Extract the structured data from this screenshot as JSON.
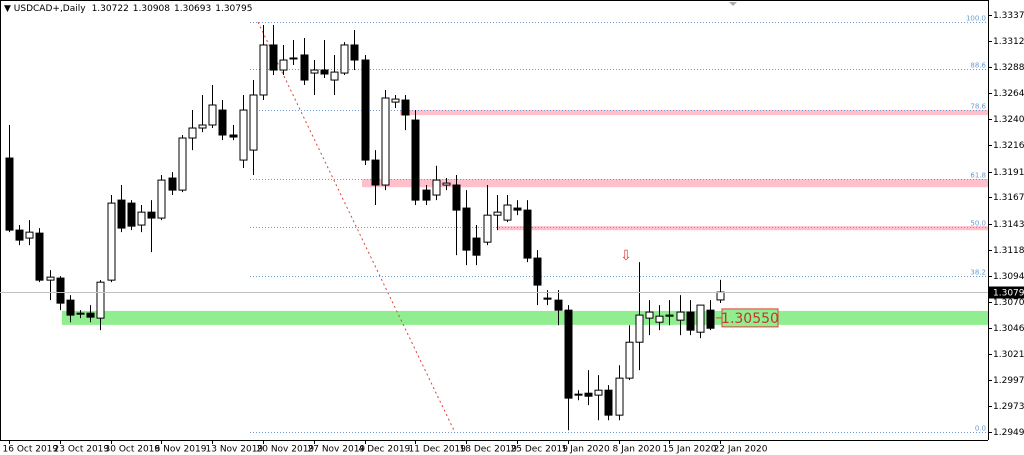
{
  "chart_data": {
    "type": "candlestick",
    "title": "USDCAD+,Daily",
    "x": [
      "16 Oct 2019",
      null,
      null,
      null,
      null,
      "23 Oct 2019",
      null,
      null,
      null,
      null,
      "30 Oct 2019",
      null,
      null,
      null,
      null,
      "6 Nov 2019",
      null,
      null,
      null,
      null,
      "13 Nov 2019",
      null,
      null,
      null,
      null,
      "20 Nov 2019",
      null,
      null,
      null,
      null,
      "27 Nov 2019",
      null,
      null,
      null,
      null,
      "4 Dec 2019",
      null,
      null,
      null,
      null,
      "11 Dec 2019",
      null,
      null,
      null,
      null,
      "18 Dec 2019",
      null,
      null,
      null,
      null,
      "25 Dec 2019",
      null,
      null,
      null,
      null,
      "1 Jan 2020",
      null,
      null,
      null,
      null,
      "8 Jan 2020",
      null,
      null,
      null,
      null,
      "15 Jan 2020",
      null,
      null,
      null,
      null,
      "22 Jan 2020"
    ],
    "open": [
      1.32041,
      1.31371,
      1.31297,
      1.31343,
      1.30906,
      1.30925,
      1.3072,
      1.3059,
      1.30599,
      1.30553,
      1.30906,
      1.3165,
      1.31622,
      1.31418,
      1.31538,
      1.31483,
      1.31855,
      1.31743,
      1.32227,
      1.3232,
      1.32348,
      1.32487,
      1.32255,
      1.32022,
      1.32115,
      1.32627,
      1.33092,
      1.32859,
      1.32971,
      1.32999,
      1.32831,
      1.32859,
      1.32766,
      1.32831,
      1.33092,
      1.32952,
      1.32022,
      1.3179,
      1.32561,
      1.3258,
      1.32394,
      1.31743,
      1.31697,
      1.3179,
      1.3179,
      1.31576,
      1.31297,
      1.31259,
      1.3151,
      1.31464,
      1.31576,
      1.31557,
      1.31111,
      1.30739,
      1.3072,
      1.30627,
      1.29837,
      1.29855,
      1.29837,
      1.29883,
      1.29651,
      1.29995,
      1.30329,
      1.30553,
      1.30515,
      1.30571,
      1.30534,
      1.30609,
      1.30422,
      1.30627,
      1.30722
    ],
    "high": [
      1.32348,
      1.31418,
      1.31464,
      1.3139,
      1.30999,
      1.30943,
      1.30767,
      1.30627,
      1.30674,
      1.30906,
      1.31697,
      1.3179,
      1.3165,
      1.31604,
      1.3165,
      1.31883,
      1.3191,
      1.32255,
      1.32487,
      1.32627,
      1.3272,
      1.3258,
      1.32348,
      1.32627,
      1.32766,
      1.33278,
      1.33278,
      1.33092,
      1.33138,
      1.33157,
      1.32952,
      1.33138,
      1.32999,
      1.33119,
      1.33231,
      1.32999,
      1.32115,
      1.32673,
      1.32627,
      1.32627,
      1.32487,
      1.3179,
      1.31969,
      1.31855,
      1.31883,
      1.31743,
      1.31418,
      1.3179,
      1.31697,
      1.31697,
      1.3165,
      1.3165,
      1.31185,
      1.30813,
      1.30813,
      1.30674,
      1.29883,
      1.30069,
      1.30023,
      1.2993,
      1.30115,
      1.30487,
      1.31073,
      1.3072,
      1.30674,
      1.3072,
      1.30767,
      1.3072,
      1.30674,
      1.3072,
      1.30908
    ],
    "low": [
      1.31352,
      1.31232,
      1.31232,
      1.30887,
      1.3072,
      1.30627,
      1.30515,
      1.30553,
      1.30515,
      1.30441,
      1.30887,
      1.31352,
      1.31371,
      1.31352,
      1.31166,
      1.31464,
      1.31697,
      1.31724,
      1.32115,
      1.32282,
      1.3232,
      1.32208,
      1.32208,
      1.31948,
      1.31883,
      1.3258,
      1.32813,
      1.32813,
      1.32906,
      1.3272,
      1.32627,
      1.32785,
      1.32627,
      1.32813,
      1.32859,
      1.31976,
      1.31604,
      1.31743,
      1.32506,
      1.32301,
      1.31604,
      1.31604,
      1.3165,
      1.31743,
      1.31138,
      1.31046,
      1.31046,
      1.31232,
      1.31371,
      1.31445,
      1.3151,
      1.31073,
      1.30674,
      1.30674,
      1.30487,
      1.29511,
      1.2979,
      1.29744,
      1.29604,
      1.29604,
      1.29604,
      1.29976,
      1.30069,
      1.30395,
      1.30441,
      1.30487,
      1.30395,
      1.30395,
      1.30367,
      1.30441,
      1.30693
    ],
    "close": [
      1.31371,
      1.31278,
      1.31352,
      1.30906,
      1.30934,
      1.30692,
      1.30581,
      1.30599,
      1.30562,
      1.30887,
      1.31622,
      1.3139,
      1.31408,
      1.31538,
      1.31483,
      1.31836,
      1.31743,
      1.32227,
      1.3232,
      1.32348,
      1.32534,
      1.32255,
      1.32236,
      1.32487,
      1.32627,
      1.33092,
      1.32859,
      1.32952,
      1.32962,
      1.32766,
      1.32859,
      1.32822,
      1.3284,
      1.33092,
      1.32952,
      1.32022,
      1.3179,
      1.32599,
      1.32589,
      1.32441,
      1.3165,
      1.3165,
      1.31836,
      1.31808,
      1.31557,
      1.31185,
      1.31138,
      1.3151,
      1.31538,
      1.31604,
      1.31557,
      1.31111,
      1.3086,
      1.30729,
      1.30627,
      1.29809,
      1.29846,
      1.29827,
      1.29883,
      1.29651,
      1.29995,
      1.30329,
      1.30581,
      1.30609,
      1.30571,
      1.30581,
      1.30609,
      1.30441,
      1.30674,
      1.30459,
      1.30795
    ],
    "ylim": [
      1.2942,
      1.3351
    ],
    "yticks": [
      {
        "value": 1.3337,
        "label": "1.33370"
      },
      1.33125,
      1.32885,
      1.32645,
      {
        "value": 1.324,
        "label": "1.32400"
      },
      {
        "value": 1.3216,
        "label": "1.32160"
      },
      1.31915,
      1.31675,
      {
        "value": 1.3143,
        "label": "1.31430"
      },
      1.31185,
      1.30945,
      {
        "value": 1.307,
        "label": "1.30700"
      },
      {
        "value": 1.3046,
        "label": "1.30460"
      },
      1.30215,
      1.29975,
      1.29735,
      {
        "value": 1.2949,
        "label": "1.29490"
      }
    ],
    "grid": false,
    "fibonacci": {
      "high": 1.33305,
      "low": 1.2949,
      "color": "#6a9bd1",
      "levels": [
        {
          "value": 100,
          "label": "100.0"
        },
        {
          "value": 88.6,
          "label": "88.6"
        },
        {
          "value": 78.6,
          "label": "78.6"
        },
        {
          "value": 61.8,
          "label": "61.8"
        },
        {
          "value": 50,
          "label": "50.0"
        },
        {
          "value": 38.2,
          "label": "38.2"
        },
        {
          "value": 0,
          "label": "0.0"
        }
      ]
    },
    "zones": [
      {
        "top": 1.3062,
        "bottom": 1.3049,
        "color": "#90ee90",
        "label": "1.30550"
      },
      {
        "top": 1.32487,
        "bottom": 1.3244,
        "color": "#ffc0cb"
      },
      {
        "top": 1.31845,
        "bottom": 1.3177,
        "color": "#ffc0cb"
      },
      {
        "top": 1.31408,
        "bottom": 1.3137,
        "color": "#ffc0cb"
      }
    ]
  }
}
